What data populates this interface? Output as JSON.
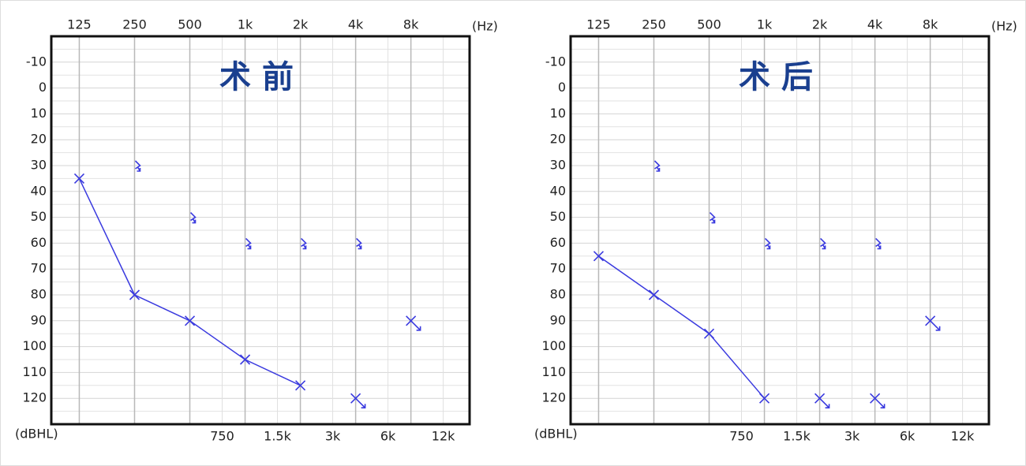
{
  "chart_data": [
    {
      "type": "scatter",
      "title": "术 前",
      "x_label": "(Hz)",
      "y_label": "(dBHL)",
      "xscale": "log",
      "yinvert": true,
      "grid": true,
      "xlim": [
        88,
        16700
      ],
      "ylim": [
        -20,
        130
      ],
      "xticks": [
        125,
        250,
        500,
        {
          "value": 1000,
          "label": "1k"
        },
        {
          "value": 2000,
          "label": "2k"
        },
        {
          "value": 4000,
          "label": "4k"
        },
        {
          "value": 8000,
          "label": "8k"
        }
      ],
      "xticks_minor": [
        750,
        {
          "value": 1500,
          "label": "1.5k"
        },
        {
          "value": 3000,
          "label": "3k"
        },
        {
          "value": 6000,
          "label": "6k"
        },
        {
          "value": 12000,
          "label": "12k"
        }
      ],
      "yticks": [
        -10,
        0,
        10,
        20,
        30,
        40,
        50,
        60,
        70,
        80,
        90,
        100,
        110,
        120
      ],
      "yticks_minor": [
        -15,
        -5,
        5,
        15,
        25,
        35,
        45,
        55,
        65,
        75,
        85,
        95,
        105,
        115,
        125
      ],
      "series": [
        {
          "marker": "x",
          "connected": true,
          "color": "#3a3adf",
          "x": [
            125,
            250,
            500,
            1000,
            2000
          ],
          "values": [
            35,
            80,
            90,
            105,
            115
          ]
        },
        {
          "marker": "x-arrow",
          "connected": false,
          "color": "#3a3adf",
          "x": [
            4000,
            8000
          ],
          "values": [
            120,
            90
          ]
        },
        {
          "marker": "bracket-arrow",
          "connected": false,
          "color": "#3a3adf",
          "x": [
            250,
            500,
            1000,
            2000,
            4000
          ],
          "values": [
            30,
            50,
            60,
            60,
            60
          ]
        }
      ]
    },
    {
      "type": "scatter",
      "title": "术 后",
      "x_label": "(Hz)",
      "y_label": "(dBHL)",
      "xscale": "log",
      "yinvert": true,
      "grid": true,
      "xlim": [
        88,
        16700
      ],
      "ylim": [
        -20,
        130
      ],
      "xticks": [
        125,
        250,
        500,
        {
          "value": 1000,
          "label": "1k"
        },
        {
          "value": 2000,
          "label": "2k"
        },
        {
          "value": 4000,
          "label": "4k"
        },
        {
          "value": 8000,
          "label": "8k"
        }
      ],
      "xticks_minor": [
        750,
        {
          "value": 1500,
          "label": "1.5k"
        },
        {
          "value": 3000,
          "label": "3k"
        },
        {
          "value": 6000,
          "label": "6k"
        },
        {
          "value": 12000,
          "label": "12k"
        }
      ],
      "yticks": [
        -10,
        0,
        10,
        20,
        30,
        40,
        50,
        60,
        70,
        80,
        90,
        100,
        110,
        120
      ],
      "yticks_minor": [
        -15,
        -5,
        5,
        15,
        25,
        35,
        45,
        55,
        65,
        75,
        85,
        95,
        105,
        115,
        125
      ],
      "series": [
        {
          "marker": "x",
          "connected": true,
          "color": "#3a3adf",
          "x": [
            125,
            250,
            500,
            1000
          ],
          "values": [
            65,
            80,
            95,
            120
          ]
        },
        {
          "marker": "x-arrow",
          "connected": false,
          "color": "#3a3adf",
          "x": [
            2000,
            4000,
            8000
          ],
          "values": [
            120,
            120,
            90
          ]
        },
        {
          "marker": "bracket-arrow",
          "connected": false,
          "color": "#3a3adf",
          "x": [
            250,
            500,
            1000,
            2000,
            4000
          ],
          "values": [
            30,
            50,
            60,
            60,
            60
          ]
        }
      ]
    }
  ]
}
